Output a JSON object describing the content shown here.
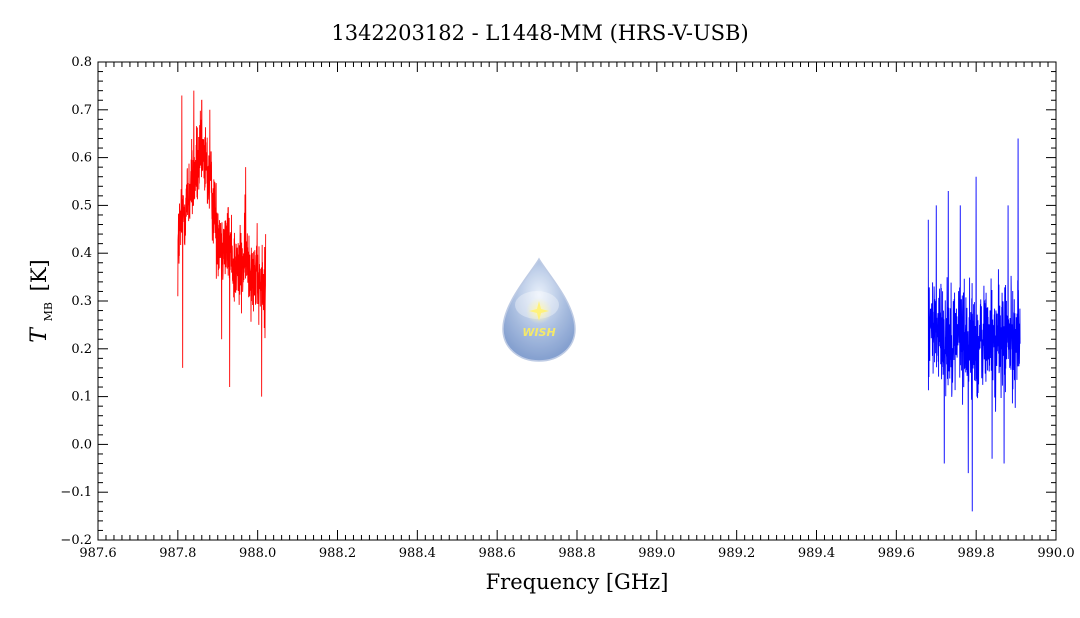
{
  "chart_data": {
    "type": "line",
    "title": "1342203182 - L1448-MM (HRS-V-USB)",
    "xlabel": "Frequency [GHz]",
    "ylabel_main": "T",
    "ylabel_sub": "MB",
    "ylabel_unit": "[K]",
    "xlim": [
      987.6,
      990.0
    ],
    "ylim": [
      -0.2,
      0.8
    ],
    "x_ticks": [
      987.6,
      987.8,
      988.0,
      988.2,
      988.4,
      988.6,
      988.8,
      989.0,
      989.2,
      989.4,
      989.6,
      989.8,
      990.0
    ],
    "x_tick_labels": [
      "987.6",
      "987.8",
      "988.0",
      "988.2",
      "988.4",
      "988.6",
      "988.8",
      "989.0",
      "989.2",
      "989.4",
      "989.6",
      "989.8",
      "990.0"
    ],
    "y_ticks": [
      -0.2,
      -0.1,
      0.0,
      0.1,
      0.2,
      0.3,
      0.4,
      0.5,
      0.6,
      0.7,
      0.8
    ],
    "y_tick_labels": [
      "−0.2",
      "−0.1",
      "0.0",
      "0.1",
      "0.2",
      "0.3",
      "0.4",
      "0.5",
      "0.6",
      "0.7",
      "0.8"
    ],
    "grid": false,
    "logo_text": "WISH",
    "series": [
      {
        "color": "#ff0000",
        "x": [
          987.8,
          987.81,
          987.82,
          987.83,
          987.84,
          987.85,
          987.86,
          987.87,
          987.88,
          987.89,
          987.9,
          987.91,
          987.92,
          987.93,
          987.94,
          987.95,
          987.96,
          987.97,
          987.98,
          987.99,
          988.0,
          988.01,
          988.02
        ],
        "y": [
          0.42,
          0.47,
          0.5,
          0.53,
          0.56,
          0.58,
          0.6,
          0.58,
          0.55,
          0.5,
          0.44,
          0.43,
          0.42,
          0.41,
          0.38,
          0.36,
          0.37,
          0.39,
          0.38,
          0.36,
          0.34,
          0.33,
          0.32
        ],
        "noise": 0.08,
        "spikes": [
          [
            987.8,
            0.31
          ],
          [
            987.81,
            0.73
          ],
          [
            987.812,
            0.16
          ],
          [
            987.84,
            0.74
          ],
          [
            987.86,
            0.72
          ],
          [
            987.88,
            0.7
          ],
          [
            987.91,
            0.22
          ],
          [
            987.93,
            0.12
          ],
          [
            987.97,
            0.58
          ],
          [
            988.01,
            0.1
          ],
          [
            988.02,
            0.05
          ],
          [
            988.02,
            0.44
          ]
        ]
      },
      {
        "color": "#0000ff",
        "x": [
          989.68,
          989.69,
          989.7,
          989.71,
          989.72,
          989.73,
          989.74,
          989.75,
          989.76,
          989.77,
          989.78,
          989.79,
          989.8,
          989.81,
          989.82,
          989.83,
          989.84,
          989.85,
          989.86,
          989.87,
          989.88,
          989.89,
          989.9,
          989.91
        ],
        "y": [
          0.24,
          0.25,
          0.24,
          0.23,
          0.24,
          0.23,
          0.22,
          0.23,
          0.24,
          0.22,
          0.21,
          0.22,
          0.2,
          0.21,
          0.22,
          0.23,
          0.22,
          0.21,
          0.22,
          0.23,
          0.22,
          0.21,
          0.22,
          0.23
        ],
        "noise": 0.1,
        "spikes": [
          [
            989.68,
            0.47
          ],
          [
            989.7,
            0.5
          ],
          [
            989.73,
            0.53
          ],
          [
            989.76,
            0.5
          ],
          [
            989.8,
            0.56
          ],
          [
            989.79,
            -0.14
          ],
          [
            989.78,
            -0.06
          ],
          [
            989.72,
            -0.04
          ],
          [
            989.87,
            0.58
          ],
          [
            989.88,
            0.5
          ],
          [
            989.905,
            0.64
          ],
          [
            989.84,
            -0.03
          ],
          [
            989.87,
            -0.04
          ]
        ]
      }
    ]
  }
}
